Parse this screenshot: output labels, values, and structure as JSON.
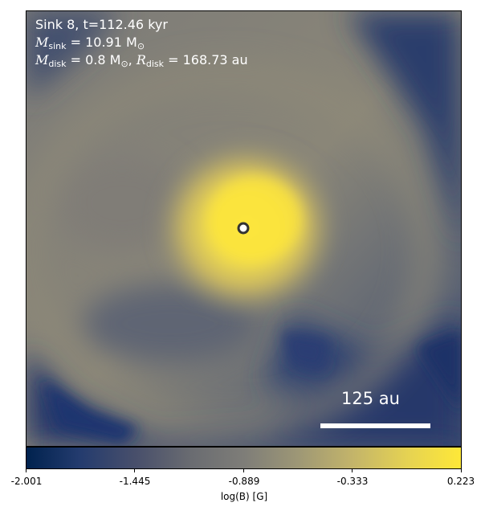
{
  "annotation": {
    "line1": "Sink 8, t=112.46 kyr",
    "m_sink_symbol": "M",
    "m_sink_sub": "sink",
    "m_sink_value": " = 10.91 M",
    "m_sink_unit_sub": "⊙",
    "m_disk_symbol": "M",
    "m_disk_sub": "disk",
    "m_disk_value": " = 0.8 M",
    "m_disk_unit_sub": "⊙",
    "r_disk_prefix": ", ",
    "r_disk_symbol": "R",
    "r_disk_sub": "disk",
    "r_disk_value": " = 168.73 au"
  },
  "scalebar": {
    "label": "125 au"
  },
  "colorbar": {
    "label": "log(B) [G]",
    "ticks": [
      "-2.001",
      "-1.445",
      "-0.889",
      "-0.333",
      "0.223"
    ],
    "colors": {
      "low": "#00224e",
      "mid": "#7e7d78",
      "high": "#fee838"
    }
  },
  "sink_marker": {
    "color": "#ffffff",
    "edge": "#333333"
  }
}
